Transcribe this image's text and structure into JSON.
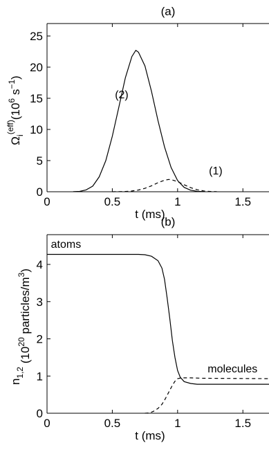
{
  "chart_data": [
    {
      "type": "line",
      "title": "(a)",
      "xlabel": "t (ms)",
      "ylabel_main": "Ω",
      "ylabel_sub": "i",
      "ylabel_sup": "(eff)",
      "ylabel_units_open": "(10",
      "ylabel_units_exp1": "6",
      "ylabel_units_mid": " s",
      "ylabel_units_exp2": "−1",
      "ylabel_units_close": ")",
      "xlim": [
        0,
        1.7
      ],
      "ylim": [
        0,
        27
      ],
      "xticks": [
        0,
        0.5,
        1,
        1.5
      ],
      "xtick_labels": [
        "0",
        "0.5",
        "1",
        "1.5"
      ],
      "yticks": [
        0,
        5,
        10,
        15,
        20,
        25
      ],
      "ytick_labels": [
        "0",
        "5",
        "10",
        "15",
        "20",
        "25"
      ],
      "series": [
        {
          "name": "(2)",
          "style": "solid",
          "x": [
            0.2,
            0.25,
            0.3,
            0.35,
            0.4,
            0.45,
            0.5,
            0.55,
            0.6,
            0.65,
            0.68,
            0.7,
            0.75,
            0.8,
            0.85,
            0.9,
            0.95,
            1.0,
            1.05,
            1.1,
            1.15,
            1.2
          ],
          "y": [
            0.01,
            0.06,
            0.3,
            0.9,
            2.4,
            5.0,
            8.9,
            13.6,
            18.3,
            21.7,
            22.7,
            22.4,
            20.2,
            16.1,
            11.4,
            7.2,
            3.9,
            1.8,
            0.7,
            0.25,
            0.08,
            0.02
          ]
        },
        {
          "name": "(1)",
          "style": "dashed",
          "x": [
            0.5,
            0.55,
            0.6,
            0.65,
            0.7,
            0.75,
            0.8,
            0.85,
            0.9,
            0.93,
            0.95,
            1.0,
            1.05,
            1.1,
            1.15,
            1.2,
            1.25,
            1.3
          ],
          "y": [
            0.0,
            0.02,
            0.05,
            0.12,
            0.28,
            0.55,
            0.95,
            1.45,
            1.85,
            1.97,
            1.95,
            1.62,
            1.12,
            0.65,
            0.32,
            0.13,
            0.04,
            0.01
          ]
        }
      ],
      "annotations": [
        {
          "text": "(2)",
          "x": 0.52,
          "y": 15.0
        },
        {
          "text": "(1)",
          "x": 1.24,
          "y": 2.8
        }
      ]
    },
    {
      "type": "line",
      "title": "(b)",
      "xlabel": "t (ms)",
      "ylabel_main": "n",
      "ylabel_sub": "1,2",
      "ylabel_units_open": " (10",
      "ylabel_units_exp1": "20",
      "ylabel_units_mid": "  particles/m",
      "ylabel_units_exp2": "3",
      "ylabel_units_close": ")",
      "xlim": [
        0,
        1.7
      ],
      "ylim": [
        0,
        4.8
      ],
      "xticks": [
        0,
        0.5,
        1,
        1.5
      ],
      "xtick_labels": [
        "0",
        "0.5",
        "1",
        "1.5"
      ],
      "yticks": [
        0,
        1,
        2,
        3,
        4
      ],
      "ytick_labels": [
        "0",
        "1",
        "2",
        "3",
        "4"
      ],
      "series": [
        {
          "name": "atoms",
          "style": "solid",
          "x": [
            0,
            0.7,
            0.75,
            0.8,
            0.85,
            0.88,
            0.9,
            0.92,
            0.94,
            0.96,
            0.98,
            1.0,
            1.02,
            1.05,
            1.1,
            1.15,
            1.2,
            1.3,
            1.7
          ],
          "y": [
            4.27,
            4.27,
            4.26,
            4.22,
            4.1,
            3.9,
            3.6,
            3.1,
            2.55,
            1.95,
            1.5,
            1.15,
            0.97,
            0.85,
            0.8,
            0.78,
            0.78,
            0.78,
            0.78
          ]
        },
        {
          "name": "molecules",
          "style": "dashed",
          "x": [
            0.75,
            0.78,
            0.8,
            0.82,
            0.85,
            0.88,
            0.9,
            0.92,
            0.94,
            0.96,
            0.98,
            1.0,
            1.03,
            1.1,
            1.2,
            1.7
          ],
          "y": [
            0.0,
            0.01,
            0.03,
            0.06,
            0.13,
            0.24,
            0.35,
            0.48,
            0.62,
            0.75,
            0.86,
            0.93,
            0.95,
            0.95,
            0.94,
            0.93
          ]
        }
      ],
      "annotations": [
        {
          "text": "atoms",
          "x": 0.03,
          "y": 4.45
        },
        {
          "text": "molecules",
          "x": 1.23,
          "y": 1.1
        }
      ]
    }
  ]
}
